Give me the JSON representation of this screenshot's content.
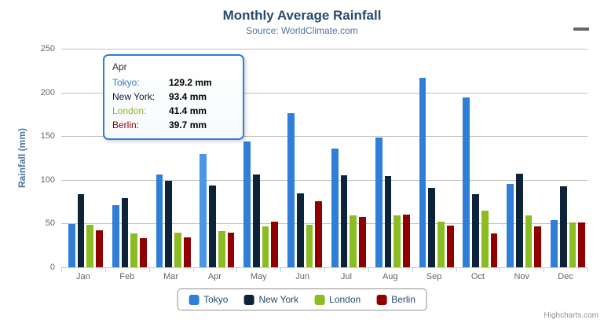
{
  "chart_data": {
    "type": "bar",
    "title": "Monthly Average Rainfall",
    "subtitle": "Source: WorldClimate.com",
    "xlabel": "",
    "ylabel": "Rainfall (mm)",
    "ylim": [
      0,
      250
    ],
    "yticks": [
      0,
      50,
      100,
      150,
      200,
      250
    ],
    "grid": true,
    "legend_position": "bottom",
    "categories": [
      "Jan",
      "Feb",
      "Mar",
      "Apr",
      "May",
      "Jun",
      "Jul",
      "Aug",
      "Sep",
      "Oct",
      "Nov",
      "Dec"
    ],
    "series": [
      {
        "name": "Tokyo",
        "color": "#2f7ed8",
        "values": [
          49.9,
          71.5,
          106.4,
          129.2,
          144.0,
          176.0,
          135.6,
          148.5,
          216.4,
          194.1,
          95.6,
          54.4
        ]
      },
      {
        "name": "New York",
        "color": "#0d233a",
        "values": [
          83.6,
          78.8,
          98.5,
          93.4,
          106.0,
          84.5,
          105.0,
          104.3,
          91.2,
          83.5,
          106.6,
          92.3
        ]
      },
      {
        "name": "London",
        "color": "#8bbc21",
        "values": [
          48.9,
          38.8,
          39.3,
          41.4,
          47.0,
          48.3,
          59.0,
          59.6,
          52.4,
          65.2,
          59.3,
          51.2
        ]
      },
      {
        "name": "Berlin",
        "color": "#910000",
        "values": [
          42.4,
          33.2,
          34.5,
          39.7,
          52.6,
          75.5,
          57.4,
          60.4,
          47.6,
          39.1,
          46.8,
          51.1
        ]
      }
    ]
  },
  "tooltip": {
    "category": "Apr",
    "rows": [
      {
        "name": "Tokyo",
        "value": "129.2 mm"
      },
      {
        "name": "New York",
        "value": "93.4 mm"
      },
      {
        "name": "London",
        "value": "41.4 mm"
      },
      {
        "name": "Berlin",
        "value": "39.7 mm"
      }
    ],
    "highlight": {
      "series": "Tokyo",
      "category": "Apr",
      "hover_color": "#4a97e8"
    },
    "border_color": "#2f7ed8"
  },
  "credits": {
    "label": "Highcharts.com"
  }
}
